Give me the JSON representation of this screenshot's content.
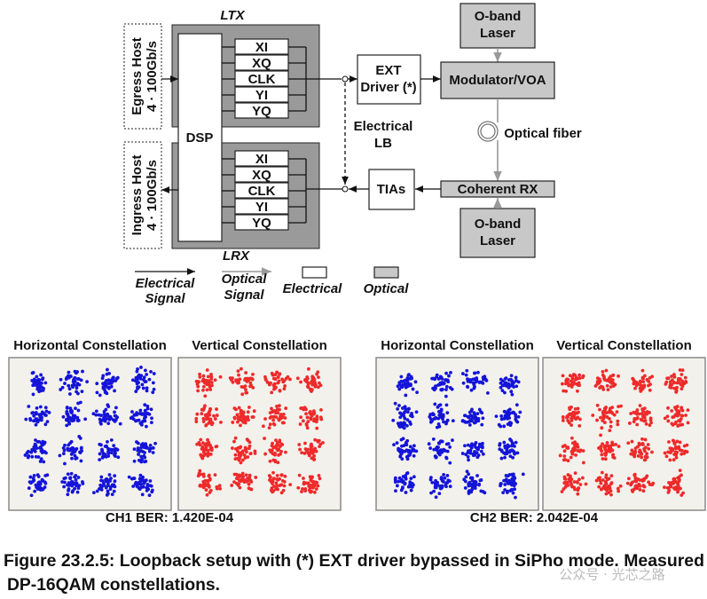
{
  "diagram": {
    "ltx": "LTX",
    "lrx": "LRX",
    "egress_host": [
      "Egress Host",
      "4 · 100Gb/s"
    ],
    "ingress_host": [
      "Ingress Host",
      "4 · 100Gb/s"
    ],
    "dsp": "DSP",
    "tx_lanes": [
      "XI",
      "XQ",
      "CLK",
      "YI",
      "YQ"
    ],
    "rx_lanes": [
      "XI",
      "XQ",
      "CLK",
      "YI",
      "YQ"
    ],
    "ext_driver": [
      "EXT",
      "Driver (*)"
    ],
    "tx_laser": [
      "O-band",
      "Laser"
    ],
    "modulator": "Modulator/VOA",
    "fiber": "Optical fiber",
    "loopback": [
      "Electrical",
      "LB"
    ],
    "tias": "TIAs",
    "coherent_rx": "Coherent RX",
    "rx_laser": [
      "O-band",
      "Laser"
    ]
  },
  "legend": {
    "electrical_signal": [
      "Electrical",
      "Signal"
    ],
    "optical_signal": [
      "Optical",
      "Signal"
    ],
    "electrical": "Electrical",
    "optical": "Optical"
  },
  "constellations": [
    {
      "titles": [
        "Horizontal Constellation",
        "Vertical Constellation"
      ],
      "ber": "CH1 BER: 1.420E-04"
    },
    {
      "titles": [
        "Horizontal Constellation",
        "Vertical Constellation"
      ],
      "ber": "CH2 BER: 2.042E-04"
    }
  ],
  "caption": [
    "Figure 23.2.5: Loopback setup with (*) EXT driver bypassed in SiPho mode. Measured",
    "DP-16QAM constellations."
  ],
  "watermark": "公众号 · 光芯之路"
}
